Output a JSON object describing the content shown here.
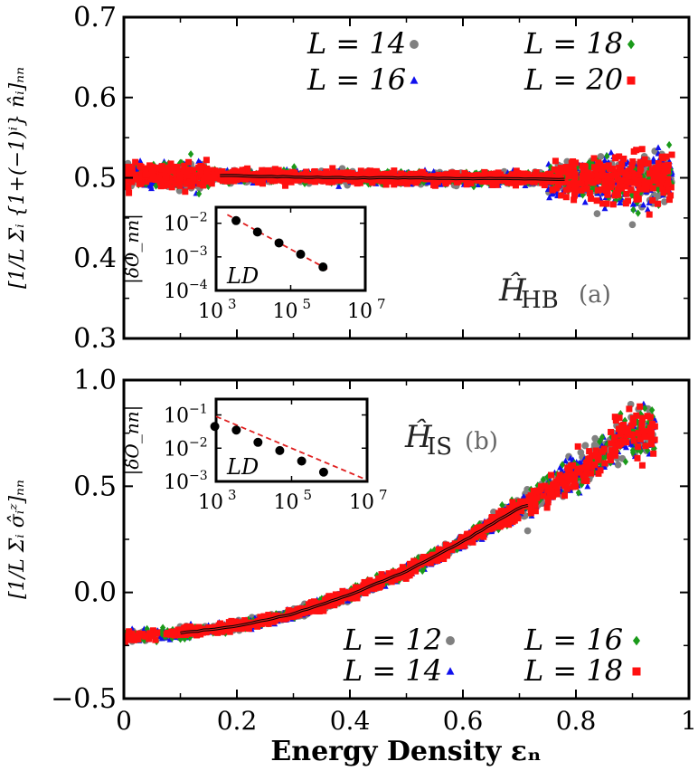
{
  "chart_data": [
    {
      "type": "scatter",
      "panel_id": "a",
      "panel_label": "(a)",
      "hamiltonian_label": "Ĥ",
      "hamiltonian_subscript": "HB",
      "ylabel": "[1/L Σᵢ {1+(−1)ⁱ} n̂ᵢ]ₙₙ",
      "ylim": [
        0.3,
        0.7
      ],
      "xlim": [
        0,
        1
      ],
      "yticks": [
        0.3,
        0.4,
        0.5,
        0.6,
        0.7
      ],
      "ytick_labels": [
        "0.3",
        "0.4",
        "0.5",
        "0.6",
        "0.7"
      ],
      "legend": [
        {
          "label": "L = 14",
          "marker": "circle",
          "color": "#808080"
        },
        {
          "label": "L = 16",
          "marker": "triangle",
          "color": "#1010ee"
        },
        {
          "label": "L = 18",
          "marker": "diamond",
          "color": "#1a9a1a"
        },
        {
          "label": "L = 20",
          "marker": "square",
          "color": "#ff1010"
        }
      ],
      "series": [
        {
          "name": "L = 14",
          "x": [
            0.0,
            0.1,
            0.2,
            0.3,
            0.4,
            0.5,
            0.6,
            0.7,
            0.8,
            0.9,
            1.0
          ],
          "y": [
            0.505,
            0.503,
            0.502,
            0.501,
            0.5,
            0.5,
            0.5,
            0.499,
            0.499,
            0.498,
            0.5
          ]
        },
        {
          "name": "L = 16",
          "x": [
            0.0,
            0.1,
            0.2,
            0.3,
            0.4,
            0.5,
            0.6,
            0.7,
            0.8,
            0.9,
            1.0
          ],
          "y": [
            0.504,
            0.503,
            0.502,
            0.501,
            0.5,
            0.5,
            0.5,
            0.499,
            0.499,
            0.498,
            0.5
          ]
        },
        {
          "name": "L = 18",
          "x": [
            0.0,
            0.1,
            0.2,
            0.3,
            0.4,
            0.5,
            0.6,
            0.7,
            0.8,
            0.9,
            1.0
          ],
          "y": [
            0.504,
            0.503,
            0.502,
            0.501,
            0.5,
            0.5,
            0.5,
            0.499,
            0.499,
            0.498,
            0.5
          ]
        },
        {
          "name": "L = 20",
          "x": [
            0.0,
            0.1,
            0.2,
            0.3,
            0.4,
            0.5,
            0.6,
            0.7,
            0.8,
            0.9,
            1.0
          ],
          "y": [
            0.504,
            0.503,
            0.502,
            0.501,
            0.5,
            0.5,
            0.5,
            0.499,
            0.499,
            0.498,
            0.5
          ]
        }
      ],
      "microcanonical_average": {
        "color": "#000000",
        "x": [
          0.17,
          0.3,
          0.4,
          0.5,
          0.6,
          0.7,
          0.78
        ],
        "y": [
          0.503,
          0.501,
          0.5,
          0.5,
          0.499,
          0.499,
          0.498
        ]
      },
      "inset": {
        "type": "scatter",
        "xscale": "log",
        "yscale": "log",
        "xlim": [
          1000,
          10000000
        ],
        "ylim": [
          0.0001,
          0.03
        ],
        "xtick_labels": [
          "10^3",
          "10^5",
          "10^7"
        ],
        "ytick_labels": [
          "10^-2",
          "10^-3",
          "10^-4"
        ],
        "ylabel": "|δO_nn|",
        "xlabel": "LD",
        "points_x": [
          3432,
          12870,
          48620,
          184756
        ],
        "points_y": [
          0.012,
          0.0055,
          0.0026,
          0.0012
        ],
        "extra_points_x": [
          735471
        ],
        "extra_points_y": [
          0.0005
        ],
        "fit": {
          "x": [
            2000,
            1000000
          ],
          "y": [
            0.018,
            0.00042
          ],
          "color": "#e02020",
          "style": "dashed"
        }
      }
    },
    {
      "type": "scatter",
      "panel_id": "b",
      "panel_label": "(b)",
      "hamiltonian_label": "Ĥ",
      "hamiltonian_subscript": "IS",
      "ylabel": "[1/L Σᵢ σ̂ᵢᶻ]ₙₙ",
      "xlabel": "Energy Density εₙ",
      "ylim": [
        -0.5,
        1.0
      ],
      "xlim": [
        0,
        1
      ],
      "xticks": [
        0,
        0.2,
        0.4,
        0.6,
        0.8,
        1
      ],
      "xtick_labels": [
        "0",
        "0.2",
        "0.4",
        "0.6",
        "0.8",
        "1"
      ],
      "yticks": [
        -0.5,
        0.0,
        0.5,
        1.0
      ],
      "ytick_labels": [
        "−0.5",
        "0.0",
        "0.5",
        "1.0"
      ],
      "legend": [
        {
          "label": "L = 12",
          "marker": "circle",
          "color": "#808080"
        },
        {
          "label": "L = 14",
          "marker": "triangle",
          "color": "#1010ee"
        },
        {
          "label": "L = 16",
          "marker": "diamond",
          "color": "#1a9a1a"
        },
        {
          "label": "L = 18",
          "marker": "square",
          "color": "#ff1010"
        }
      ],
      "series": [
        {
          "name": "L = 12",
          "x": [
            0.0,
            0.1,
            0.2,
            0.3,
            0.4,
            0.5,
            0.6,
            0.7,
            0.8,
            0.9
          ],
          "y": [
            -0.21,
            -0.19,
            -0.16,
            -0.1,
            -0.01,
            0.1,
            0.24,
            0.4,
            0.56,
            0.75
          ]
        },
        {
          "name": "L = 14",
          "x": [
            0.0,
            0.1,
            0.2,
            0.3,
            0.4,
            0.5,
            0.6,
            0.7,
            0.8,
            0.9
          ],
          "y": [
            -0.21,
            -0.19,
            -0.16,
            -0.1,
            -0.01,
            0.1,
            0.24,
            0.4,
            0.56,
            0.75
          ]
        },
        {
          "name": "L = 16",
          "x": [
            0.0,
            0.1,
            0.2,
            0.3,
            0.4,
            0.5,
            0.6,
            0.7,
            0.8,
            0.9
          ],
          "y": [
            -0.21,
            -0.19,
            -0.16,
            -0.1,
            -0.01,
            0.1,
            0.24,
            0.4,
            0.56,
            0.75
          ]
        },
        {
          "name": "L = 18",
          "x": [
            0.0,
            0.1,
            0.2,
            0.3,
            0.4,
            0.5,
            0.6,
            0.7,
            0.8,
            0.9
          ],
          "y": [
            -0.21,
            -0.19,
            -0.16,
            -0.1,
            -0.01,
            0.1,
            0.24,
            0.4,
            0.56,
            0.75
          ]
        }
      ],
      "microcanonical_average": {
        "color": "#000000",
        "x": [
          0.1,
          0.2,
          0.3,
          0.4,
          0.5,
          0.6,
          0.7,
          0.715
        ],
        "y": [
          -0.19,
          -0.16,
          -0.1,
          -0.01,
          0.1,
          0.24,
          0.4,
          0.41
        ]
      },
      "inset": {
        "type": "scatter",
        "xscale": "log",
        "yscale": "log",
        "xlim": [
          1000,
          10000000
        ],
        "ylim": [
          0.001,
          0.3
        ],
        "xtick_labels": [
          "10^3",
          "10^5",
          "10^7"
        ],
        "ytick_labels": [
          "10^-1",
          "10^-2",
          "10^-3"
        ],
        "ylabel": "|δO_nn|",
        "xlabel": "LD",
        "points_x": [
          924,
          3432,
          12870,
          48620,
          184756,
          705432
        ],
        "points_y": [
          0.045,
          0.035,
          0.015,
          0.0085,
          0.0041,
          0.0019
        ],
        "fit": {
          "x": [
            1000,
            10000000
          ],
          "y": [
            0.09,
            0.0011
          ],
          "color": "#e02020",
          "style": "dashed"
        }
      }
    }
  ]
}
